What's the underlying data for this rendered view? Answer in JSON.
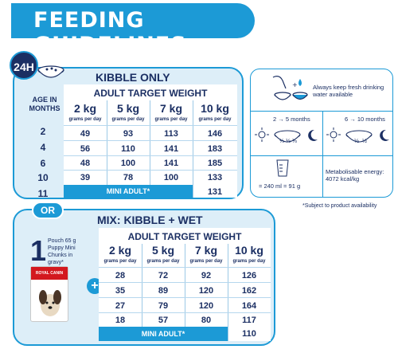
{
  "header": {
    "title": "FEEDING GUIDELINES",
    "frequency_badge": "24H"
  },
  "kibble_only": {
    "title": "KIBBLE ONLY",
    "subtitle": "ADULT TARGET WEIGHT",
    "age_header_line1": "AGE IN",
    "age_header_line2": "MONTHS",
    "weights": [
      "2 kg",
      "5 kg",
      "7 kg",
      "10 kg"
    ],
    "unit": "grams per day",
    "ages": [
      "2",
      "4",
      "6",
      "10",
      "11"
    ],
    "rows": [
      [
        "49",
        "93",
        "113",
        "146"
      ],
      [
        "56",
        "110",
        "141",
        "183"
      ],
      [
        "48",
        "100",
        "141",
        "185"
      ],
      [
        "39",
        "78",
        "100",
        "133"
      ]
    ],
    "mini_adult_label": "MINI ADULT*",
    "last_value": "131"
  },
  "or_label": "OR",
  "mix": {
    "title": "MIX: KIBBLE + WET",
    "subtitle": "ADULT TARGET WEIGHT",
    "pouch_count": "1",
    "pouch_desc": "Pouch 65 g Puppy Mini Chunks in gravy*",
    "pack_brand": "ROYAL CANIN",
    "plus": "+",
    "weights": [
      "2 kg",
      "5 kg",
      "7 kg",
      "10 kg"
    ],
    "unit": "grams per day",
    "rows": [
      [
        "28",
        "72",
        "92",
        "126"
      ],
      [
        "35",
        "89",
        "120",
        "162"
      ],
      [
        "27",
        "79",
        "120",
        "164"
      ],
      [
        "18",
        "57",
        "80",
        "117"
      ]
    ],
    "mini_adult_label": "MINI ADULT*",
    "last_value": "110"
  },
  "info": {
    "water_text": "Always keep fresh drinking water available",
    "meals_a": "2 → 5 months",
    "meals_b": "6 → 10 months",
    "fraction": "⅓",
    "half": "½",
    "measure": "= 240 ml = 91 g",
    "energy": "Metabolisable energy: 4072 kcal/kg"
  },
  "footnote": "*Subject to product availability"
}
